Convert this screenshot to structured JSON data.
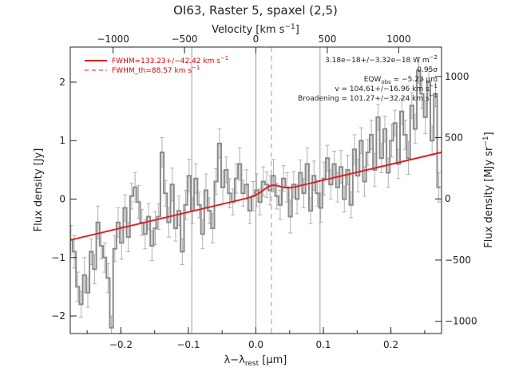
{
  "title": "OI63, Raster 5, spaxel (2,5)",
  "chart_data": {
    "type": "line",
    "x_axis": {
      "label_main": "λ−λ",
      "label_sub": "rest",
      "label_unit": "[μm]",
      "range": [
        -0.275,
        0.275
      ],
      "ticks": [
        -0.2,
        -0.1,
        0.0,
        0.1,
        0.2
      ],
      "tick_labels": [
        "−0.2",
        "−0.1",
        "0.0",
        "0.1",
        "0.2"
      ]
    },
    "top_axis": {
      "label_main": "Velocity [km s",
      "label_sup": "−1",
      "label_end": "]",
      "range": [
        -1300,
        1300
      ],
      "ticks": [
        -1000,
        -500,
        0,
        500,
        1000
      ],
      "tick_labels": [
        "−1000",
        "−500",
        "0",
        "500",
        "1000"
      ]
    },
    "y_axis": {
      "label": "Flux density [Jy]",
      "range": [
        -2.3,
        2.6
      ],
      "ticks": [
        -2,
        -1,
        0,
        1,
        2
      ],
      "tick_labels": [
        "−2",
        "−1",
        "0",
        "1",
        "2"
      ]
    },
    "right_axis": {
      "label_main": "Flux density [MJy sr",
      "label_sup": "−1",
      "label_end": "]",
      "range": [
        -1100,
        1240
      ],
      "ticks": [
        -1000,
        -500,
        0,
        500,
        1000
      ],
      "tick_labels": [
        "−1000",
        "−500",
        "0",
        "500",
        "1000"
      ]
    },
    "vertical_lines": {
      "solid_gray": [
        -0.095,
        0.0,
        0.095
      ],
      "dashed_gray": [
        0.023
      ]
    },
    "spectrum": {
      "color": "#8a8a8a",
      "error_color": "#b0b0b0",
      "x": [
        -0.274,
        -0.269,
        -0.264,
        -0.259,
        -0.254,
        -0.249,
        -0.244,
        -0.239,
        -0.234,
        -0.229,
        -0.224,
        -0.219,
        -0.214,
        -0.209,
        -0.204,
        -0.199,
        -0.194,
        -0.189,
        -0.184,
        -0.179,
        -0.174,
        -0.169,
        -0.164,
        -0.159,
        -0.154,
        -0.149,
        -0.144,
        -0.139,
        -0.134,
        -0.129,
        -0.124,
        -0.119,
        -0.114,
        -0.109,
        -0.104,
        -0.099,
        -0.094,
        -0.089,
        -0.084,
        -0.079,
        -0.074,
        -0.069,
        -0.064,
        -0.059,
        -0.054,
        -0.049,
        -0.044,
        -0.039,
        -0.034,
        -0.029,
        -0.024,
        -0.019,
        -0.014,
        -0.009,
        -0.004,
        0.001,
        0.006,
        0.011,
        0.016,
        0.021,
        0.026,
        0.031,
        0.036,
        0.041,
        0.046,
        0.051,
        0.056,
        0.061,
        0.066,
        0.071,
        0.076,
        0.081,
        0.086,
        0.091,
        0.096,
        0.101,
        0.106,
        0.111,
        0.116,
        0.121,
        0.126,
        0.131,
        0.136,
        0.141,
        0.146,
        0.151,
        0.156,
        0.161,
        0.166,
        0.171,
        0.176,
        0.181,
        0.186,
        0.191,
        0.196,
        0.201,
        0.206,
        0.211,
        0.216,
        0.221,
        0.226,
        0.231,
        0.236,
        0.241,
        0.246,
        0.251,
        0.256,
        0.261,
        0.266,
        0.271
      ],
      "y": [
        -0.7,
        -0.9,
        -1.5,
        -1.8,
        -1.3,
        -1.6,
        -0.9,
        -1.2,
        -0.4,
        -0.8,
        -1.0,
        -1.35,
        -2.2,
        -0.85,
        -0.4,
        -0.75,
        -0.15,
        -0.65,
        0.05,
        0.2,
        -0.05,
        -0.4,
        -0.6,
        -0.3,
        -0.8,
        -0.5,
        -0.3,
        0.8,
        0.1,
        -0.4,
        0.25,
        -0.5,
        -0.2,
        -0.9,
        -0.1,
        0.4,
        -0.2,
        0.35,
        -0.1,
        -0.6,
        0.15,
        -0.2,
        -0.5,
        0.3,
        0.95,
        0.2,
        0.5,
        0.1,
        -0.05,
        0.35,
        0.6,
        0.1,
        0.25,
        -0.2,
        0.05,
        0.15,
        -0.05,
        0.3,
        0.25,
        0.15,
        0.4,
        0.05,
        -0.1,
        0.35,
        0.2,
        -0.3,
        0.25,
        0.0,
        0.45,
        0.1,
        0.6,
        -0.2,
        0.4,
        0.1,
        -0.15,
        0.35,
        0.7,
        0.25,
        0.6,
        0.2,
        0.55,
        0.0,
        0.5,
        -0.1,
        0.85,
        0.4,
        1.0,
        0.3,
        0.8,
        1.1,
        0.5,
        1.4,
        0.7,
        1.2,
        0.45,
        1.0,
        1.3,
        0.6,
        1.5,
        1.1,
        0.7,
        1.6,
        1.2,
        2.2,
        1.8,
        1.4,
        2.0,
        1.0,
        1.8,
        0.2
      ],
      "err": [
        0.25,
        0.28,
        0.25,
        0.22,
        0.3,
        0.25,
        0.22,
        0.25,
        0.28,
        0.22,
        0.25,
        0.25,
        0.2,
        0.22,
        0.25,
        0.28,
        0.22,
        0.25,
        0.22,
        0.25,
        0.28,
        0.22,
        0.25,
        0.22,
        0.25,
        0.28,
        0.22,
        0.25,
        0.22,
        0.25,
        0.28,
        0.22,
        0.25,
        0.22,
        0.25,
        0.28,
        0.22,
        0.25,
        0.22,
        0.25,
        0.28,
        0.22,
        0.25,
        0.22,
        0.25,
        0.28,
        0.22,
        0.25,
        0.22,
        0.25,
        0.28,
        0.22,
        0.25,
        0.22,
        0.25,
        0.28,
        0.22,
        0.25,
        0.22,
        0.25,
        0.28,
        0.22,
        0.25,
        0.22,
        0.25,
        0.28,
        0.22,
        0.25,
        0.22,
        0.25,
        0.28,
        0.22,
        0.25,
        0.22,
        0.25,
        0.28,
        0.22,
        0.25,
        0.22,
        0.25,
        0.28,
        0.22,
        0.25,
        0.22,
        0.25,
        0.28,
        0.22,
        0.25,
        0.22,
        0.25,
        0.28,
        0.22,
        0.25,
        0.22,
        0.25,
        0.28,
        0.22,
        0.25,
        0.22,
        0.25,
        0.28,
        0.22,
        0.25,
        0.22,
        0.25,
        0.28,
        0.22,
        0.25,
        0.22,
        0.25
      ]
    },
    "fit": {
      "color": "#e02020",
      "continuum_at_xmin": -0.7,
      "continuum_at_xmax": 0.8,
      "gauss_center": 0.023,
      "gauss_amplitude": 0.12,
      "gauss_sigma": 0.012
    },
    "legend": {
      "position": "top-left",
      "entries": [
        {
          "style": "solid",
          "label": "FWHM=133.23+/−42.42 km s",
          "sup": "−1"
        },
        {
          "style": "dashed",
          "label": "FWHM_th=88.57 km s",
          "sup": "−1"
        }
      ]
    },
    "annotations": {
      "position": "top-right",
      "lines": [
        {
          "text": "3.18e−18+/−3.32e−18 W m",
          "sup": "−2"
        },
        {
          "text": "0.95σ"
        },
        {
          "text": "EQW",
          "sub": "obs",
          "text2": " = −5.23 μm"
        },
        {
          "text": "v = 104.61+/−16.96 km s",
          "sup": "−1"
        },
        {
          "text": "Broadening = 101.27+/−32.24 km s",
          "sup": "−1"
        }
      ]
    }
  }
}
